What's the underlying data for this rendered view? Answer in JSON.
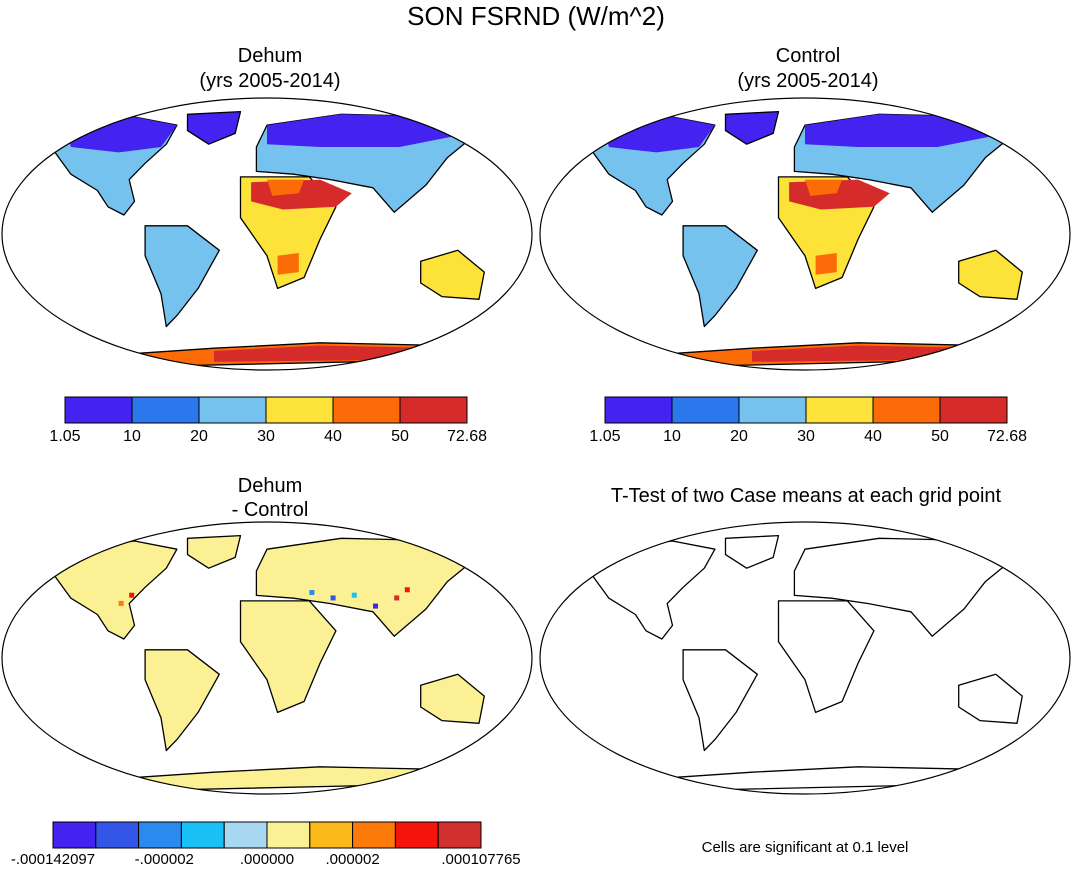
{
  "chart_data": [
    {
      "type": "heatmap",
      "title": "Dehum",
      "subtitle": "(yrs 2005-2014)",
      "colorbar": {
        "levels": [
          "1.05",
          "10",
          "20",
          "30",
          "40",
          "50",
          "72.68"
        ],
        "colors": [
          "#4422f0",
          "#2a78ec",
          "#76c2ee",
          "#fde23a",
          "#fb6b07",
          "#d52b2a"
        ]
      }
    },
    {
      "type": "heatmap",
      "title": "Control",
      "subtitle": "(yrs 2005-2014)",
      "colorbar": {
        "levels": [
          "1.05",
          "10",
          "20",
          "30",
          "40",
          "50",
          "72.68"
        ],
        "colors": [
          "#4422f0",
          "#2a78ec",
          "#76c2ee",
          "#fde23a",
          "#fb6b07",
          "#d52b2a"
        ]
      }
    },
    {
      "type": "heatmap",
      "title": "Dehum",
      "subtitle": "- Control",
      "colorbar": {
        "levels": [
          "-.000142097",
          "-.000002",
          ".000000",
          ".000002",
          ".000107765"
        ],
        "colors": [
          "#4422f0",
          "#3355e8",
          "#2a8aee",
          "#18c0f5",
          "#a9d8f2",
          "#fbf093",
          "#fbb81b",
          "#fb7a0a",
          "#f5140c",
          "#d22f2f"
        ]
      }
    },
    {
      "type": "heatmap",
      "title": "T-Test of two Case means at each grid point",
      "note": "Cells are significant at 0.1 level"
    }
  ],
  "page": {
    "title": "SON FSRND (W/m^2)"
  },
  "colors": {
    "warm_fill": "#fbf093",
    "ocean": "#ffffff",
    "outline": "#000000"
  }
}
